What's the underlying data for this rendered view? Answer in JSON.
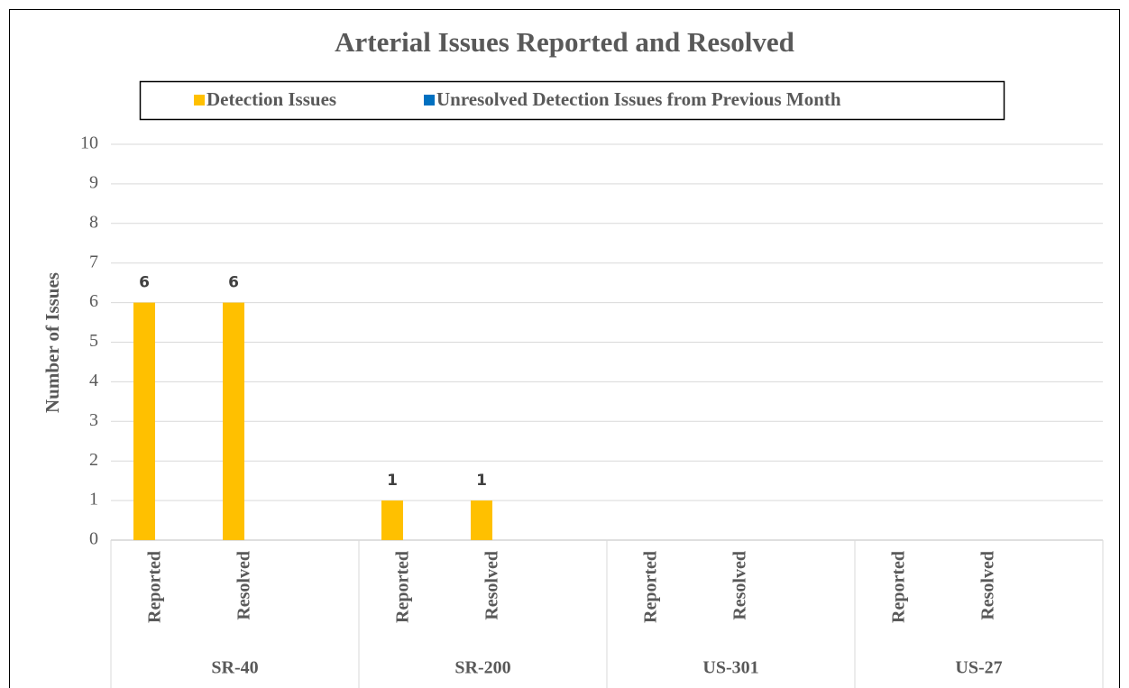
{
  "chart_data": {
    "type": "bar",
    "title": "Arterial Issues Reported and Resolved",
    "y_label": "Number of Issues",
    "groups": [
      "SR-40",
      "SR-200",
      "US-301",
      "US-27"
    ],
    "categories": [
      "Reported",
      "Resolved",
      "Reported",
      "Resolved",
      "Reported",
      "Resolved",
      "Reported",
      "Resolved"
    ],
    "series": [
      {
        "name": "Detection Issues",
        "color": "#ffc000",
        "values": [
          6,
          6,
          1,
          1,
          0,
          0,
          0,
          0
        ],
        "value_labels": [
          "6",
          "6",
          "1",
          "1",
          null,
          null,
          null,
          null
        ]
      },
      {
        "name": "Unresolved Detection Issues from Previous Month",
        "color": "#0070c0",
        "values": [
          0,
          0,
          0,
          0,
          0,
          0,
          0,
          0
        ]
      }
    ],
    "ylim": [
      0,
      10
    ],
    "yticks": [
      0,
      1,
      2,
      3,
      4,
      5,
      6,
      7,
      8,
      9,
      10
    ],
    "grid": true,
    "legend": "top"
  }
}
